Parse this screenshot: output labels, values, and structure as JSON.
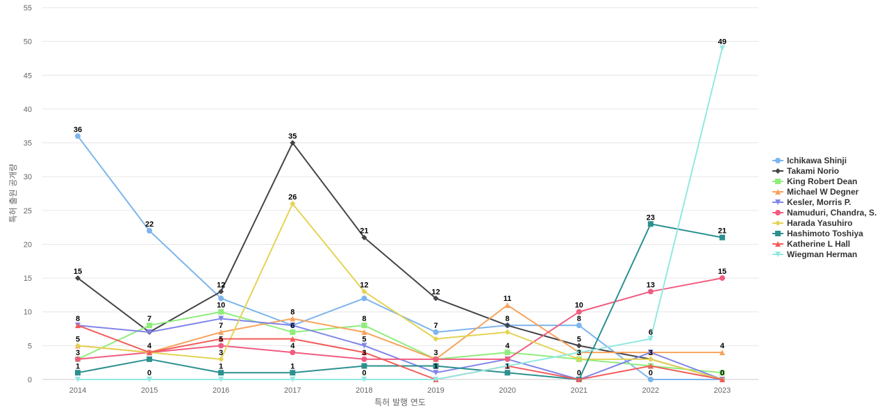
{
  "chart_data": {
    "type": "line",
    "title": "",
    "xlabel": "특허 발행 연도",
    "ylabel": "특허 출원 공개량",
    "x": [
      2014,
      2015,
      2016,
      2017,
      2018,
      2019,
      2020,
      2021,
      2022,
      2023
    ],
    "ylim": [
      0,
      55
    ],
    "yticks": [
      0,
      5,
      10,
      15,
      20,
      25,
      30,
      35,
      40,
      45,
      50,
      55
    ],
    "grid": true,
    "legend_position": "right",
    "series": [
      {
        "name": "Ichikawa Shinji",
        "color": "#7cb5ec",
        "marker": "circle",
        "values": [
          36,
          22,
          12,
          8,
          12,
          7,
          8,
          8,
          0,
          0
        ]
      },
      {
        "name": "Takami Norio",
        "color": "#434348",
        "marker": "diamond",
        "values": [
          15,
          7,
          13,
          35,
          21,
          12,
          8,
          5,
          3,
          0
        ]
      },
      {
        "name": "King Robert Dean",
        "color": "#90ed7d",
        "marker": "square",
        "values": [
          3,
          8,
          10,
          7,
          8,
          3,
          4,
          3,
          2,
          1
        ]
      },
      {
        "name": "Michael W Degner",
        "color": "#f7a35c",
        "marker": "triangle",
        "values": [
          5,
          4,
          7,
          9,
          7,
          3,
          11,
          4,
          4,
          4
        ]
      },
      {
        "name": "Kesler, Morris P.",
        "color": "#8085e9",
        "marker": "triangle-down",
        "values": [
          8,
          7,
          9,
          8,
          5,
          1,
          3,
          0,
          4,
          0
        ]
      },
      {
        "name": "Namuduri, Chandra, S.",
        "color": "#f15c80",
        "marker": "circle",
        "values": [
          3,
          4,
          5,
          4,
          3,
          3,
          3,
          10,
          13,
          15
        ]
      },
      {
        "name": "Harada Yasuhiro",
        "color": "#e4d354",
        "marker": "diamond",
        "values": [
          5,
          4,
          3,
          26,
          13,
          6,
          7,
          3,
          3,
          0
        ]
      },
      {
        "name": "Hashimoto Toshiya",
        "color": "#2b908f",
        "marker": "square",
        "values": [
          1,
          3,
          1,
          1,
          2,
          2,
          1,
          0,
          23,
          21
        ]
      },
      {
        "name": "Katherine L Hall",
        "color": "#f45b5b",
        "marker": "triangle",
        "values": [
          8,
          4,
          6,
          6,
          4,
          0,
          2,
          0,
          2,
          0
        ]
      },
      {
        "name": "Wiegman Herman",
        "color": "#91e8e1",
        "marker": "triangle-down",
        "values": [
          0,
          0,
          0,
          0,
          0,
          0,
          2,
          4,
          6,
          49
        ]
      }
    ],
    "data_labels": [
      {
        "x": 2014,
        "text": "36",
        "y": 36
      },
      {
        "x": 2014,
        "text": "15",
        "y": 15
      },
      {
        "x": 2014,
        "text": "8",
        "y": 8
      },
      {
        "x": 2014,
        "text": "5",
        "y": 5
      },
      {
        "x": 2014,
        "text": "3",
        "y": 3
      },
      {
        "x": 2014,
        "text": "1",
        "y": 1
      },
      {
        "x": 2015,
        "text": "22",
        "y": 22
      },
      {
        "x": 2015,
        "text": "7",
        "y": 8
      },
      {
        "x": 2015,
        "text": "4",
        "y": 4
      },
      {
        "x": 2015,
        "text": "0",
        "y": 0
      },
      {
        "x": 2016,
        "text": "12",
        "y": 13
      },
      {
        "x": 2016,
        "text": "10",
        "y": 10
      },
      {
        "x": 2016,
        "text": "7",
        "y": 7
      },
      {
        "x": 2016,
        "text": "5",
        "y": 5
      },
      {
        "x": 2016,
        "text": "3",
        "y": 3
      },
      {
        "x": 2016,
        "text": "1",
        "y": 1
      },
      {
        "x": 2017,
        "text": "35",
        "y": 35
      },
      {
        "x": 2017,
        "text": "26",
        "y": 26
      },
      {
        "x": 2017,
        "text": "8",
        "y": 9
      },
      {
        "x": 2017,
        "text": "6",
        "y": 7
      },
      {
        "x": 2017,
        "text": "4",
        "y": 4
      },
      {
        "x": 2017,
        "text": "1",
        "y": 1
      },
      {
        "x": 2018,
        "text": "21",
        "y": 21
      },
      {
        "x": 2018,
        "text": "12",
        "y": 13
      },
      {
        "x": 2018,
        "text": "8",
        "y": 8
      },
      {
        "x": 2018,
        "text": "5",
        "y": 5
      },
      {
        "x": 2018,
        "text": "3",
        "y": 3
      },
      {
        "x": 2018,
        "text": "0",
        "y": 0
      },
      {
        "x": 2019,
        "text": "12",
        "y": 12
      },
      {
        "x": 2019,
        "text": "7",
        "y": 7
      },
      {
        "x": 2019,
        "text": "3",
        "y": 3
      },
      {
        "x": 2019,
        "text": "1",
        "y": 1
      },
      {
        "x": 2020,
        "text": "11",
        "y": 11
      },
      {
        "x": 2020,
        "text": "8",
        "y": 8
      },
      {
        "x": 2020,
        "text": "4",
        "y": 4
      },
      {
        "x": 2020,
        "text": "1",
        "y": 1
      },
      {
        "x": 2021,
        "text": "10",
        "y": 10
      },
      {
        "x": 2021,
        "text": "8",
        "y": 8
      },
      {
        "x": 2021,
        "text": "5",
        "y": 5
      },
      {
        "x": 2021,
        "text": "3",
        "y": 3
      },
      {
        "x": 2021,
        "text": "0",
        "y": 0
      },
      {
        "x": 2022,
        "text": "23",
        "y": 23
      },
      {
        "x": 2022,
        "text": "13",
        "y": 13
      },
      {
        "x": 2022,
        "text": "6",
        "y": 6
      },
      {
        "x": 2022,
        "text": "3",
        "y": 3
      },
      {
        "x": 2022,
        "text": "0",
        "y": 0
      },
      {
        "x": 2023,
        "text": "49",
        "y": 49
      },
      {
        "x": 2023,
        "text": "21",
        "y": 21
      },
      {
        "x": 2023,
        "text": "15",
        "y": 15
      },
      {
        "x": 2023,
        "text": "4",
        "y": 4
      },
      {
        "x": 2023,
        "text": "0",
        "y": 0
      }
    ]
  }
}
